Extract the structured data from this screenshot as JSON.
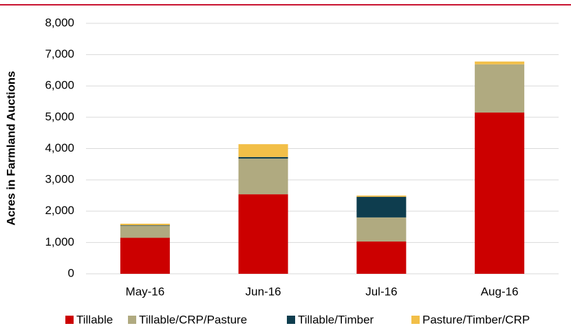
{
  "chart_data": {
    "type": "stacked_bar",
    "y_label": "Acres in Farmland Auctions",
    "categories": [
      "May-16",
      "Jun-16",
      "Jul-16",
      "Aug-16"
    ],
    "series": [
      {
        "name": "Tillable",
        "color": "#cc0000",
        "values": [
          1150,
          2540,
          1030,
          5150
        ]
      },
      {
        "name": "Tillable/CRP/Pasture",
        "color": "#b0aa80",
        "values": [
          380,
          1140,
          770,
          1540
        ]
      },
      {
        "name": "Tillable/Timber",
        "color": "#0e3d4e",
        "values": [
          20,
          50,
          660,
          0
        ]
      },
      {
        "name": "Pasture/Timber/CRP",
        "color": "#f2bf48",
        "values": [
          50,
          410,
          40,
          90
        ]
      }
    ],
    "ylim": [
      0,
      8000
    ],
    "yticks": [
      0,
      {
        "value": 1000,
        "label": "1,000"
      },
      {
        "value": 2000,
        "label": "2,000"
      },
      {
        "value": 3000,
        "label": "3,000"
      },
      {
        "value": 4000,
        "label": "4,000"
      },
      {
        "value": 5000,
        "label": "5,000"
      },
      {
        "value": 6000,
        "label": "6,000"
      },
      {
        "value": 7000,
        "label": "7,000"
      },
      {
        "value": 8000,
        "label": "8,000"
      }
    ],
    "grid": true
  }
}
